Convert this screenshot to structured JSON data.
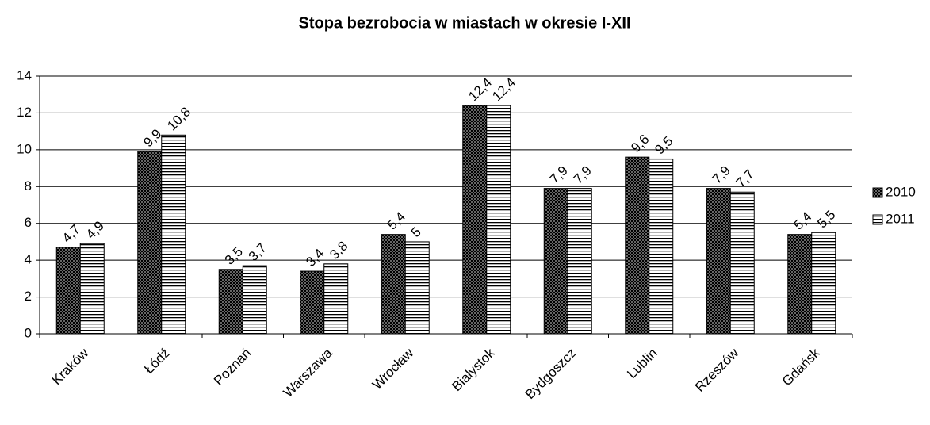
{
  "chart_data": {
    "type": "bar",
    "title": "Stopa bezrobocia w miastach w okresie I-XII",
    "categories": [
      "Kraków",
      "Łódź",
      "Poznań",
      "Warszawa",
      "Wrocław",
      "Białystok",
      "Bydgoszcz",
      "Lublin",
      "Rzeszów",
      "Gdańsk"
    ],
    "series": [
      {
        "name": "2010",
        "color": "#000000",
        "values": [
          4.7,
          9.9,
          3.5,
          3.4,
          5.4,
          12.4,
          7.9,
          9.6,
          7.9,
          5.4
        ],
        "value_labels": [
          "4,7",
          "9,9",
          "3,5",
          "3,4",
          "5,4",
          "12,4",
          "7,9",
          "9,6",
          "7,9",
          "5,4"
        ]
      },
      {
        "name": "2011",
        "color": "#ffffff",
        "values": [
          4.9,
          10.8,
          3.7,
          3.8,
          5,
          12.4,
          7.9,
          9.5,
          7.7,
          5.5
        ],
        "value_labels": [
          "4,9",
          "10,8",
          "3,7",
          "3,8",
          "5",
          "12,4",
          "7,9",
          "9,5",
          "7,7",
          "5,5"
        ]
      }
    ],
    "ylim": [
      0,
      14
    ],
    "yticks": [
      0,
      2,
      4,
      6,
      8,
      10,
      12,
      14
    ],
    "grid": true,
    "legend": "right"
  }
}
